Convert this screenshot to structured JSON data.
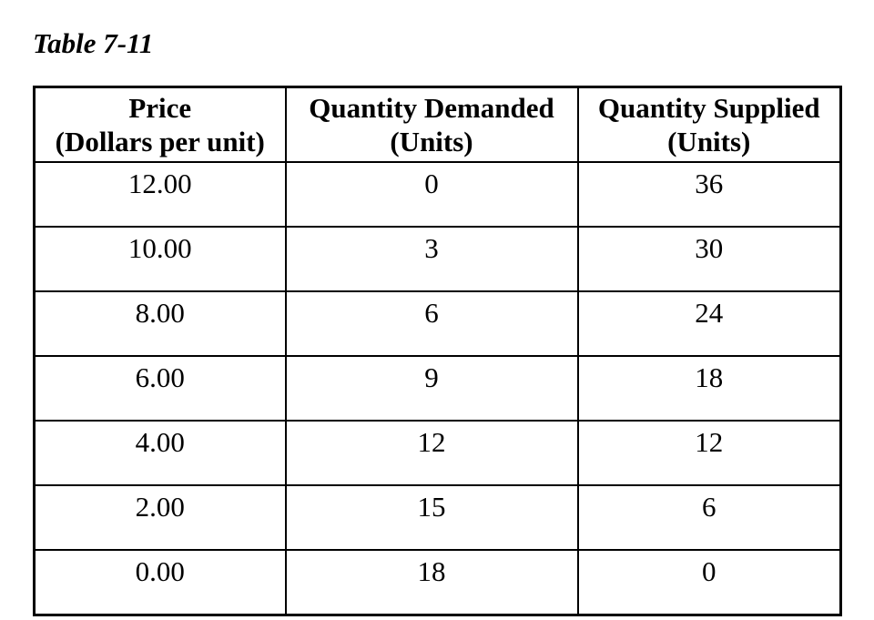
{
  "caption": "Table 7-11",
  "table": {
    "headers": [
      {
        "line1": "Price",
        "line2": "(Dollars per unit)"
      },
      {
        "line1": "Quantity Demanded",
        "line2": "(Units)"
      },
      {
        "line1": "Quantity Supplied",
        "line2": "(Units)"
      }
    ],
    "rows": [
      [
        "12.00",
        "0",
        "36"
      ],
      [
        "10.00",
        "3",
        "30"
      ],
      [
        "8.00",
        "6",
        "24"
      ],
      [
        "6.00",
        "9",
        "18"
      ],
      [
        "4.00",
        "12",
        "12"
      ],
      [
        "2.00",
        "15",
        "6"
      ],
      [
        "0.00",
        "18",
        "0"
      ]
    ]
  }
}
